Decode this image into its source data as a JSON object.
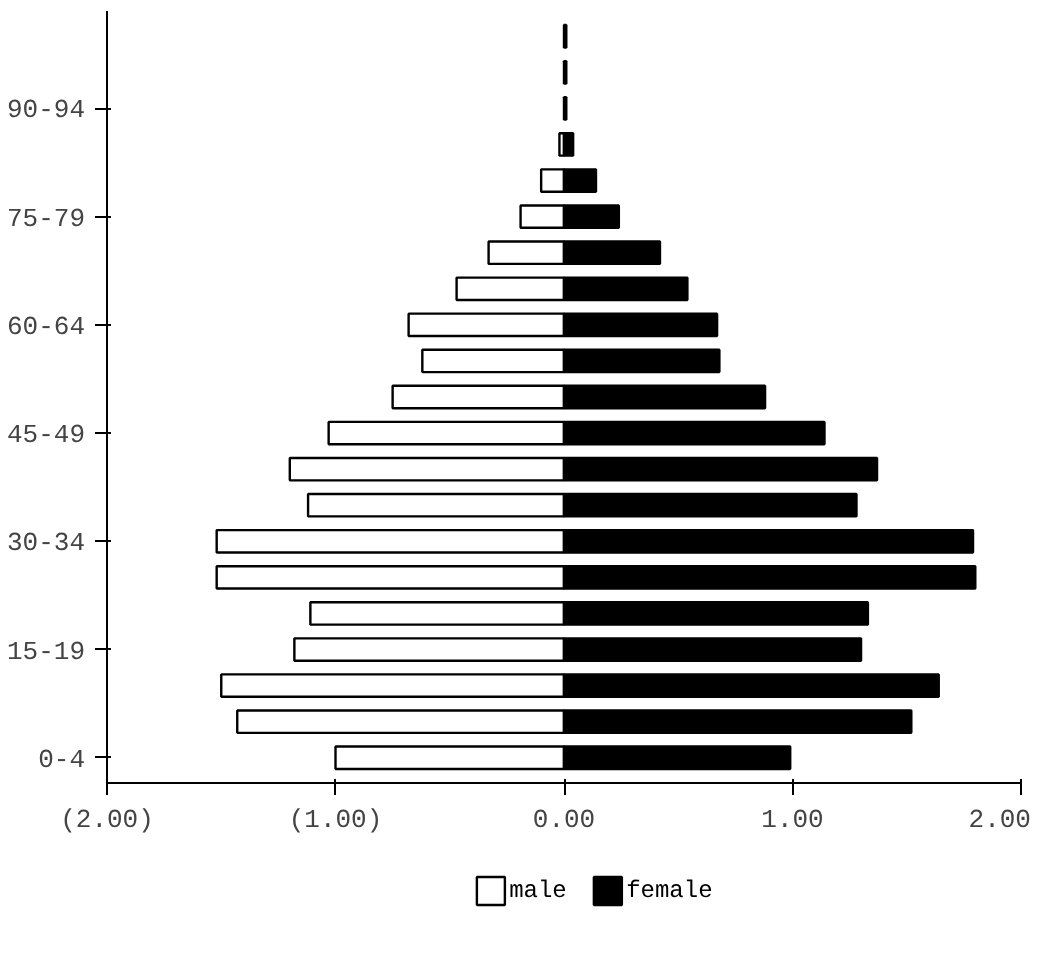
{
  "chart_data": {
    "type": "bar",
    "orientation": "horizontal",
    "stacked": true,
    "categories": [
      null,
      null,
      "90-94",
      null,
      null,
      "75-79",
      null,
      null,
      "60-64",
      null,
      null,
      "45-49",
      null,
      null,
      "30-34",
      null,
      null,
      "15-19",
      null,
      null,
      "0-4"
    ],
    "series": [
      {
        "name": "male",
        "color": "#ffffff",
        "values": [
          null,
          null,
          null,
          -0.02,
          -0.1,
          -0.19,
          -0.33,
          -0.47,
          -0.68,
          -0.62,
          -0.75,
          -1.03,
          -1.2,
          -1.12,
          -1.52,
          -1.52,
          -1.11,
          -1.18,
          -1.5,
          -1.43,
          -1.0
        ]
      },
      {
        "name": "female",
        "color": "#000000",
        "values": [
          0.01,
          0.01,
          0.01,
          0.04,
          0.14,
          0.24,
          0.42,
          0.54,
          0.67,
          0.68,
          0.88,
          1.14,
          1.37,
          1.28,
          1.79,
          1.8,
          1.33,
          1.3,
          1.64,
          1.52,
          0.99
        ]
      }
    ],
    "xlim": [
      -2,
      2
    ],
    "xticks": [
      {
        "value": -2,
        "label": "(2.00)"
      },
      {
        "value": -1,
        "label": "(1.00)"
      },
      {
        "value": 0,
        "label": "0.00"
      },
      {
        "value": 1,
        "label": "1.00"
      },
      {
        "value": 2,
        "label": "2.00"
      }
    ],
    "grid": false,
    "legend": "bottom"
  }
}
